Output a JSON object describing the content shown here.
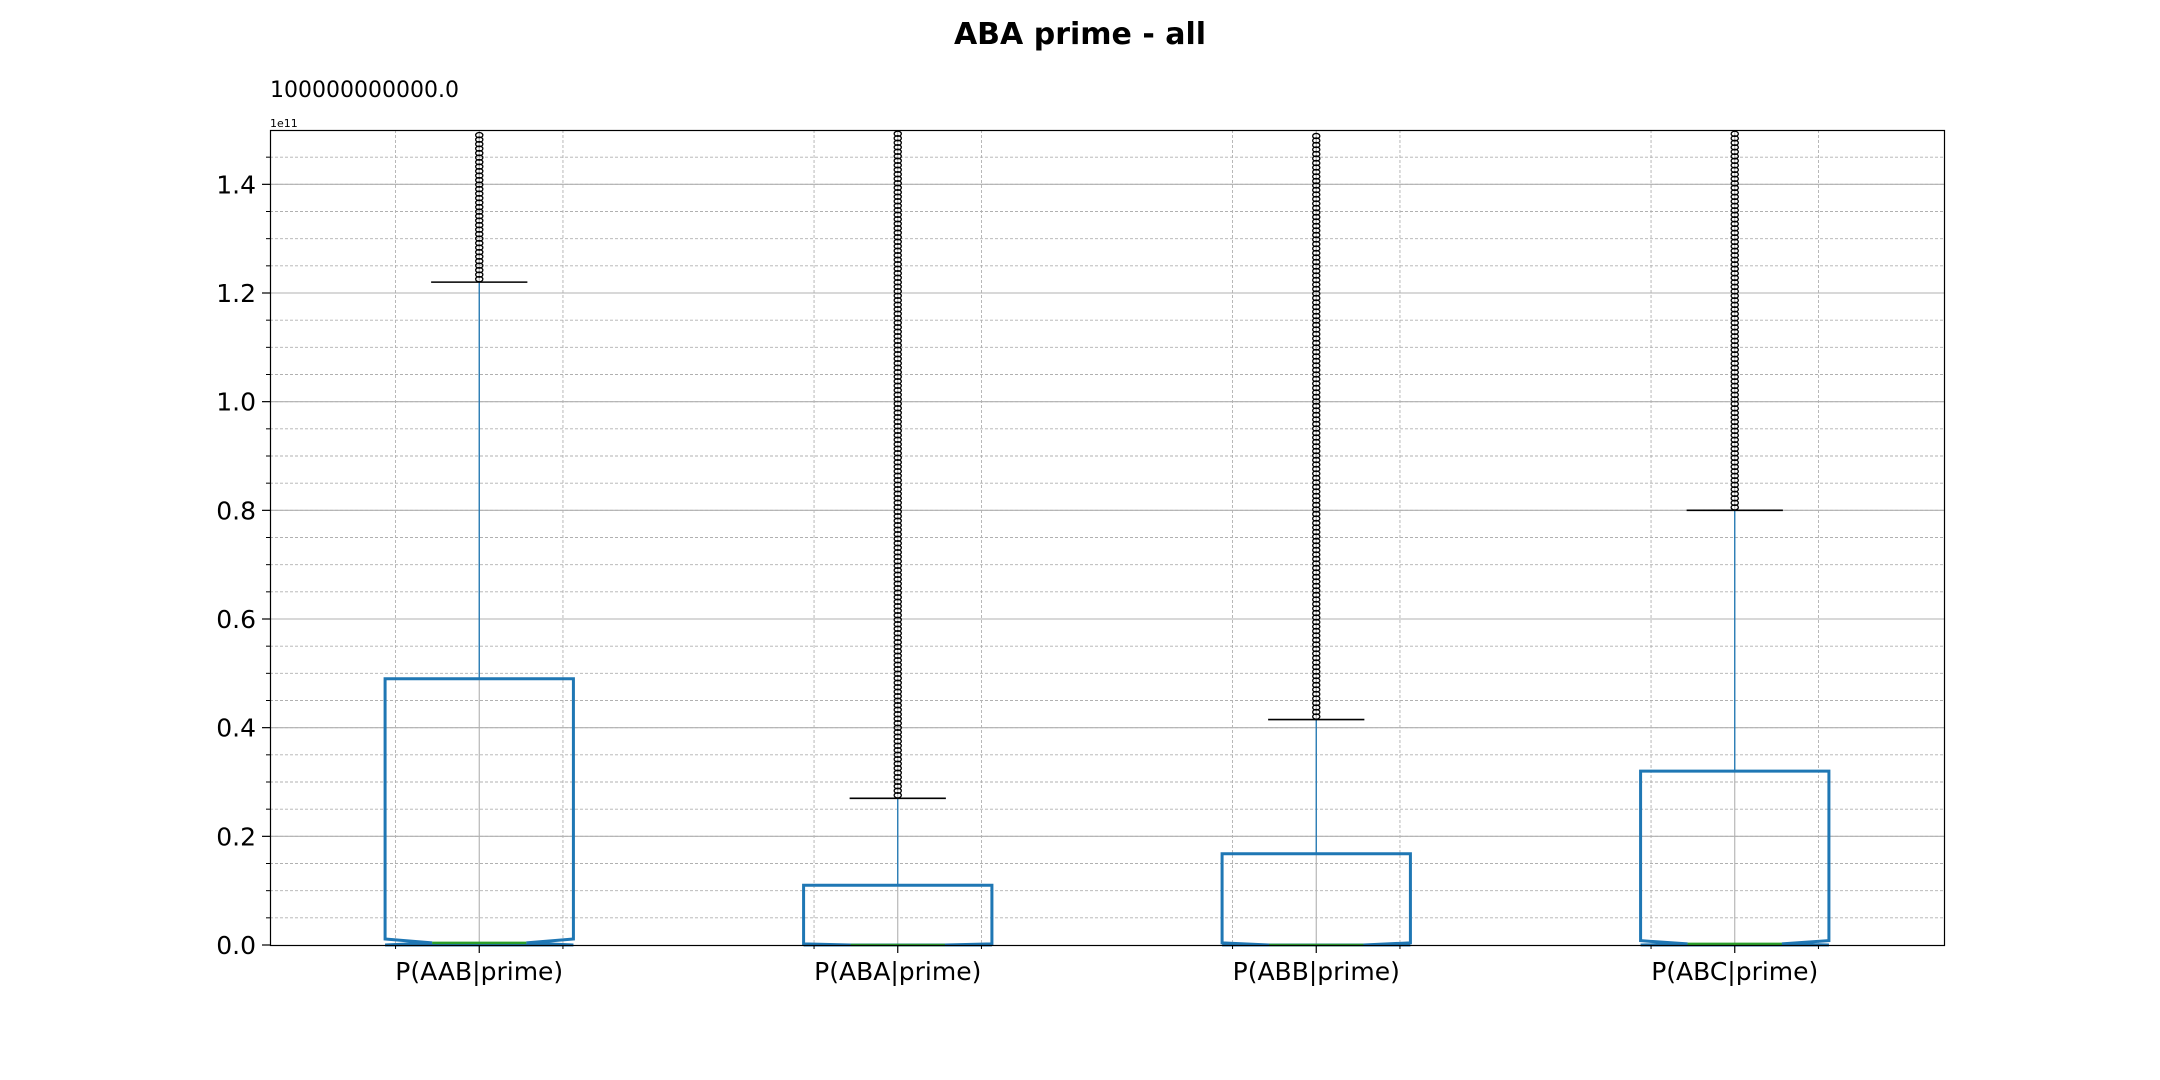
{
  "chart_data": {
    "type": "box",
    "title": "ABA prime - all",
    "annotation": "100000000000.0",
    "offset_text": "1e11",
    "xlabel": "",
    "ylabel": "",
    "ylim": [
      0,
      1.5
    ],
    "y_scale_multiplier": "1e11",
    "y_major_ticks": [
      0.0,
      0.2,
      0.4,
      0.6,
      0.8,
      1.0,
      1.2,
      1.4
    ],
    "y_tick_labels": [
      "0.0",
      "0.2",
      "0.4",
      "0.6",
      "0.8",
      "1.0",
      "1.2",
      "1.4"
    ],
    "y_minor_step": 0.05,
    "x_minor_positions": [
      0.8,
      1.2,
      1.8,
      2.2,
      2.8,
      3.2,
      3.8,
      4.2
    ],
    "grid": true,
    "notched": true,
    "categories": [
      "P(AAB|prime)",
      "P(ABA|prime)",
      "P(ABB|prime)",
      "P(ABC|prime)"
    ],
    "boxes": [
      {
        "label": "P(AAB|prime)",
        "q1": 0.0,
        "median": 0.004,
        "q3": 0.49,
        "notch_low": 0.0,
        "notch_high": 0.011,
        "whisker_low": 0.0,
        "whisker_high": 1.22,
        "outliers_from": 1.22,
        "outliers_to": 1.5
      },
      {
        "label": "P(ABA|prime)",
        "q1": 0.0,
        "median": 0.0,
        "q3": 0.11,
        "notch_low": 0.0,
        "notch_high": 0.002,
        "whisker_low": 0.0,
        "whisker_high": 0.27,
        "outliers_from": 0.27,
        "outliers_to": 1.5
      },
      {
        "label": "P(ABB|prime)",
        "q1": 0.0,
        "median": 0.0,
        "q3": 0.168,
        "notch_low": 0.0,
        "notch_high": 0.004,
        "whisker_low": 0.0,
        "whisker_high": 0.415,
        "outliers_from": 0.415,
        "outliers_to": 1.5
      },
      {
        "label": "P(ABC|prime)",
        "q1": 0.0,
        "median": 0.002,
        "q3": 0.32,
        "notch_low": 0.0,
        "notch_high": 0.008,
        "whisker_low": 0.0,
        "whisker_high": 0.8,
        "outliers_from": 0.8,
        "outliers_to": 1.5
      }
    ],
    "colors": {
      "box": "#1f77b4",
      "median": "#2ca02c",
      "whisker_cap": "#000000",
      "flier": "#000000",
      "grid": "#b0b0b0"
    }
  }
}
